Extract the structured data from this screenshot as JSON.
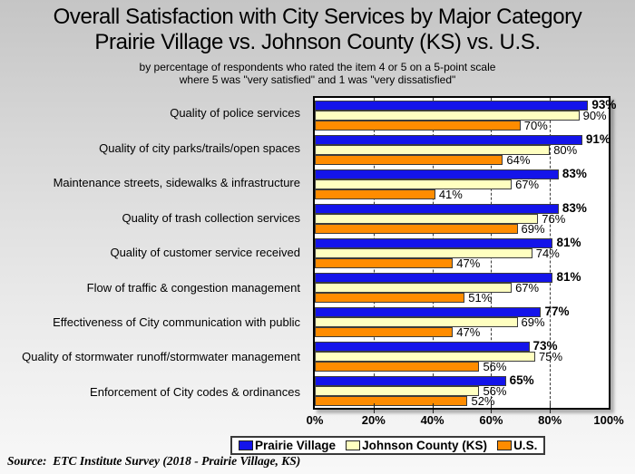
{
  "slide": {
    "title_line1": "Overall Satisfaction with City Services by Major Category",
    "title_line2": "Prairie Village vs. Johnson County (KS) vs. U.S.",
    "subtitle_line1": "by percentage of respondents who rated the item 4 or 5 on a 5-point scale",
    "subtitle_line2": "where 5 was \"very satisfied\" and 1 was \"very dissatisfied\"",
    "source": "Source:  ETC Institute Survey (2018 - Prairie Village, KS)"
  },
  "chart_data": {
    "type": "bar",
    "orientation": "horizontal",
    "title": "Overall Satisfaction with City Services by Major Category",
    "subtitle": "Prairie Village vs. Johnson County (KS) vs. U.S.",
    "categories": [
      "Quality of police services",
      "Quality of city parks/trails/open spaces",
      "Maintenance streets, sidewalks & infrastructure",
      "Quality of trash collection services",
      "Quality of customer service received",
      "Flow of traffic & congestion management",
      "Effectiveness of City communication with public",
      "Quality of stormwater runoff/stormwater management",
      "Enforcement of City codes & ordinances"
    ],
    "series": [
      {
        "name": "Prairie Village",
        "color": "#1414EA",
        "bold_labels": true,
        "values": [
          93,
          91,
          83,
          83,
          81,
          81,
          77,
          73,
          65
        ]
      },
      {
        "name": "Johnson County (KS)",
        "color": "#FFFFC0",
        "bold_labels": false,
        "values": [
          90,
          80,
          67,
          76,
          74,
          67,
          69,
          75,
          56
        ]
      },
      {
        "name": "U.S.",
        "color": "#FF8C00",
        "bold_labels": false,
        "values": [
          70,
          64,
          41,
          69,
          47,
          51,
          47,
          56,
          52
        ]
      }
    ],
    "value_suffix": "%",
    "xlim": [
      0,
      100
    ],
    "xticks": [
      "0%",
      "20%",
      "40%",
      "60%",
      "80%",
      "100%"
    ],
    "xtick_percents": [
      0,
      20,
      40,
      60,
      80,
      100
    ],
    "gridline_percents": [
      20,
      40,
      60,
      80
    ],
    "grid": "dashed-vertical",
    "legend_position": "bottom",
    "plot_background": "#FFFFFF"
  }
}
